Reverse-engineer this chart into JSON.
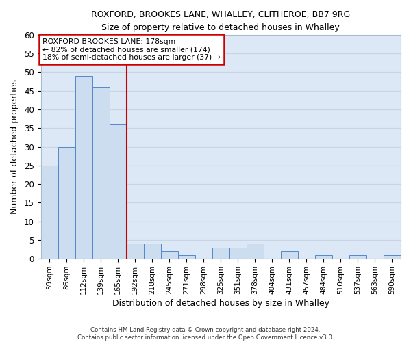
{
  "title": "ROXFORD, BROOKES LANE, WHALLEY, CLITHEROE, BB7 9RG",
  "subtitle": "Size of property relative to detached houses in Whalley",
  "xlabel": "Distribution of detached houses by size in Whalley",
  "ylabel": "Number of detached properties",
  "bar_labels": [
    "59sqm",
    "86sqm",
    "112sqm",
    "139sqm",
    "165sqm",
    "192sqm",
    "218sqm",
    "245sqm",
    "271sqm",
    "298sqm",
    "325sqm",
    "351sqm",
    "378sqm",
    "404sqm",
    "431sqm",
    "457sqm",
    "484sqm",
    "510sqm",
    "537sqm",
    "563sqm",
    "590sqm"
  ],
  "bar_values": [
    25,
    30,
    49,
    46,
    36,
    4,
    4,
    2,
    1,
    0,
    3,
    3,
    4,
    0,
    2,
    0,
    1,
    0,
    1,
    0,
    1
  ],
  "bar_color": "#ccddf0",
  "bar_edge_color": "#5588cc",
  "grid_color": "#c8d4e4",
  "property_line_color": "#cc0000",
  "property_label": "ROXFORD BROOKES LANE: 178sqm",
  "annotation_line1": "← 82% of detached houses are smaller (174)",
  "annotation_line2": "18% of semi-detached houses are larger (37) →",
  "annotation_box_color": "#ffffff",
  "annotation_box_edge": "#cc0000",
  "ylim": [
    0,
    60
  ],
  "yticks": [
    0,
    5,
    10,
    15,
    20,
    25,
    30,
    35,
    40,
    45,
    50,
    55,
    60
  ],
  "footer_line1": "Contains HM Land Registry data © Crown copyright and database right 2024.",
  "footer_line2": "Contains public sector information licensed under the Open Government Licence v3.0.",
  "plot_bg_color": "#dce8f5",
  "fig_bg_color": "#ffffff"
}
